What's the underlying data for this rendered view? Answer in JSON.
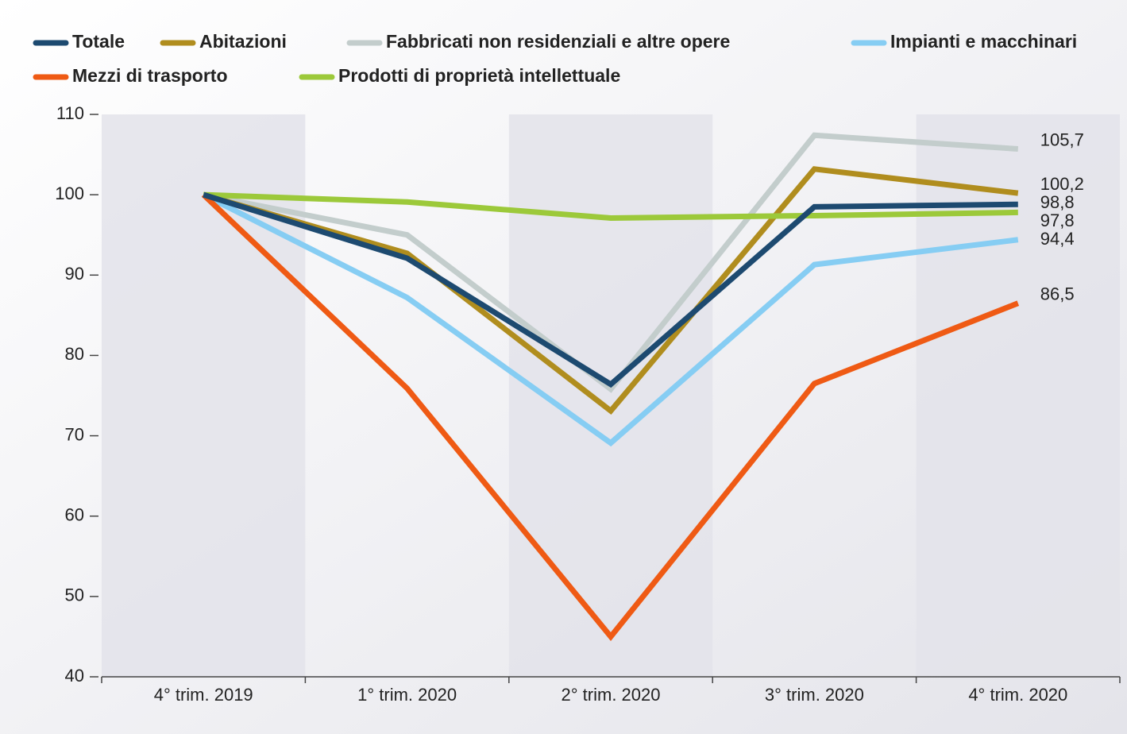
{
  "chart_data": {
    "type": "line",
    "categories": [
      "4° trim.  2019",
      "1° trim. 2020",
      "2° trim. 2020",
      "3° trim. 2020",
      "4° trim. 2020"
    ],
    "series": [
      {
        "name": "Totale",
        "color": "#1d4a70",
        "values": [
          100,
          92.1,
          76.4,
          98.5,
          98.8
        ],
        "value_labels": [
          null,
          null,
          null,
          null,
          "98,8"
        ]
      },
      {
        "name": "Abitazioni",
        "color": "#b08d1e",
        "values": [
          100,
          92.7,
          73.1,
          103.2,
          100.2
        ],
        "value_labels": [
          null,
          null,
          null,
          null,
          "100,2"
        ]
      },
      {
        "name": "Fabbricati non residenziali e altre opere",
        "color": "#c3cdcc",
        "values": [
          100,
          95,
          75.8,
          107.4,
          105.7
        ],
        "value_labels": [
          null,
          null,
          null,
          null,
          "105,7"
        ]
      },
      {
        "name": "Impianti e macchinari",
        "color": "#86cdf3",
        "values": [
          100,
          87.2,
          69.1,
          91.3,
          94.4
        ],
        "value_labels": [
          null,
          null,
          null,
          null,
          "94,4"
        ]
      },
      {
        "name": "Mezzi di trasporto",
        "color": "#ef5a14",
        "values": [
          100,
          75.9,
          45,
          76.5,
          86.5
        ],
        "value_labels": [
          null,
          null,
          null,
          null,
          "86,5"
        ]
      },
      {
        "name": "Prodotti di proprietà intellettuale",
        "color": "#9cc93a",
        "values": [
          100,
          99.1,
          97.1,
          97.4,
          97.8
        ],
        "value_labels": [
          null,
          null,
          null,
          null,
          "97,8"
        ]
      }
    ],
    "ylim": [
      40,
      110
    ],
    "yticks": [
      40,
      50,
      60,
      70,
      80,
      90,
      100,
      110
    ]
  }
}
